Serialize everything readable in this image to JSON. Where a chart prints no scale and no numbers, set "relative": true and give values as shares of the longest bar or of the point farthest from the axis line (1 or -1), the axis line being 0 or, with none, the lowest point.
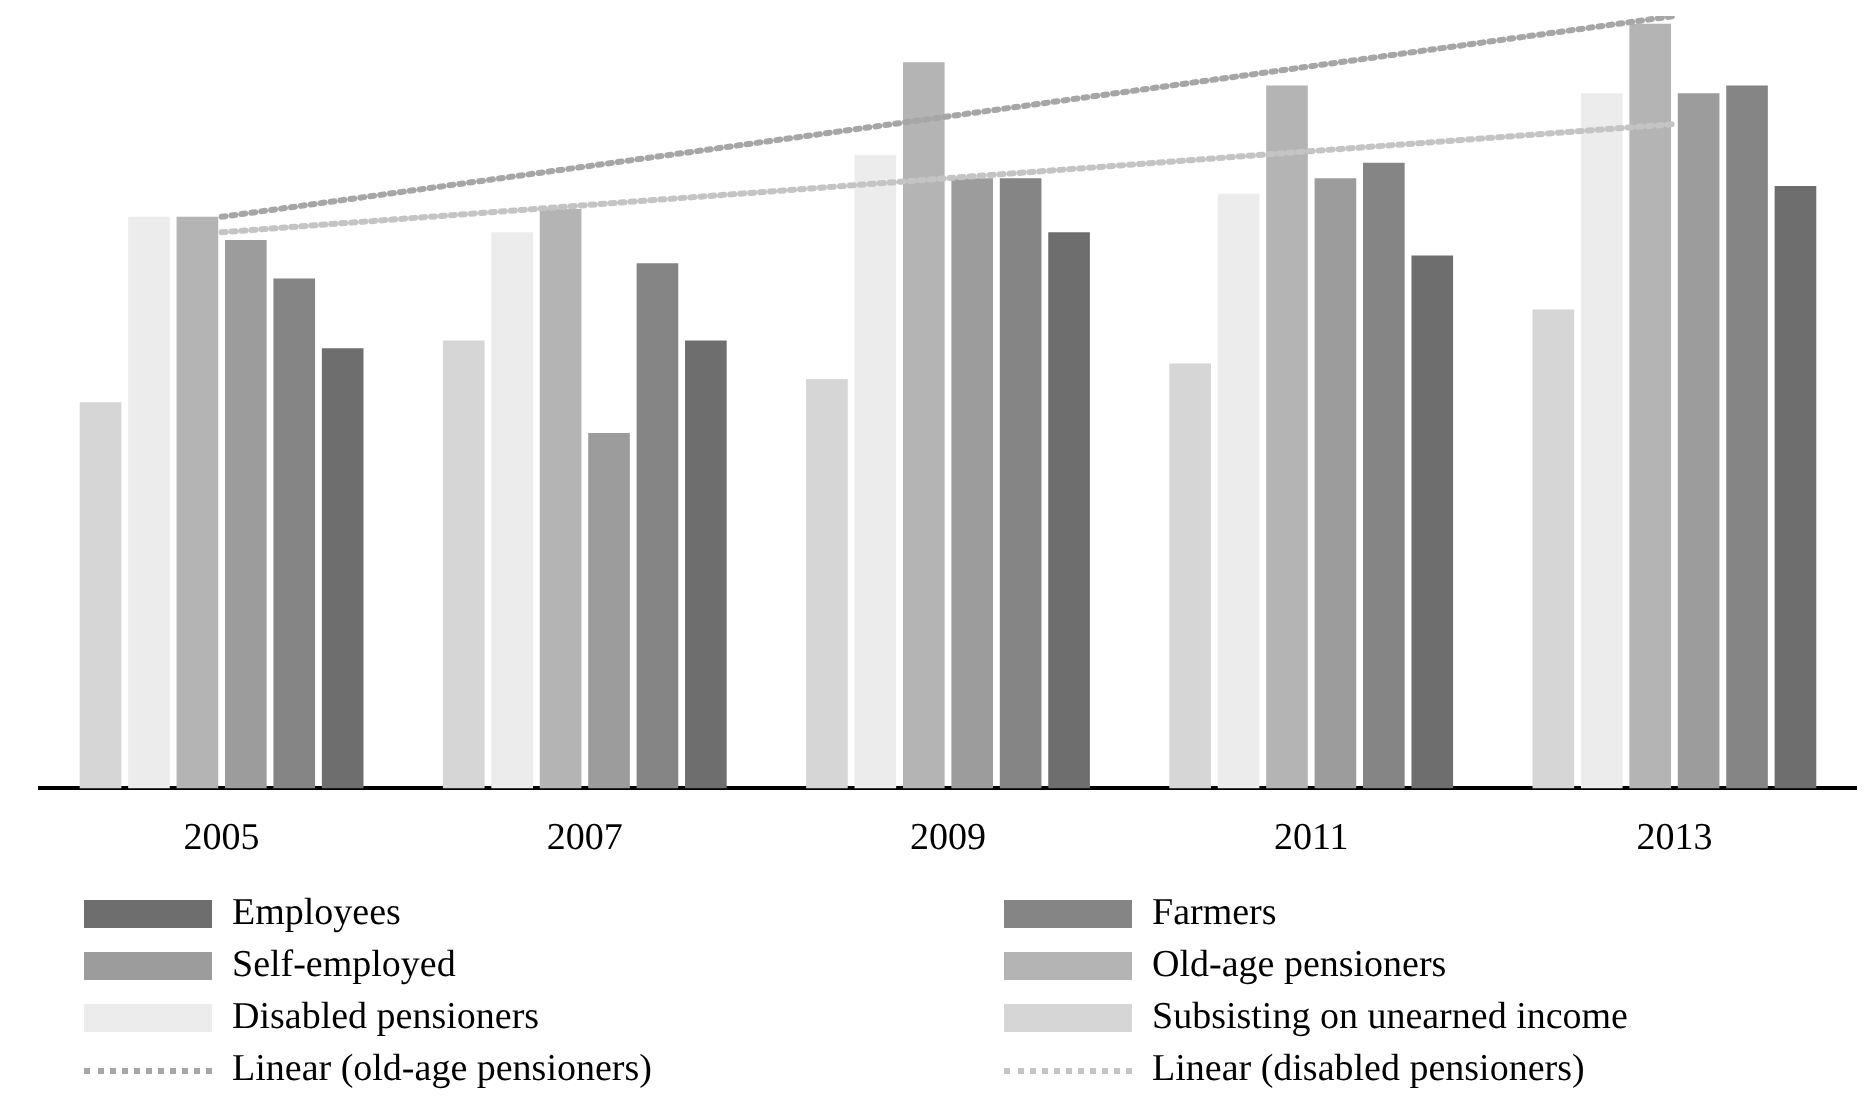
{
  "chart_data": {
    "type": "bar",
    "relative": true,
    "categories": [
      "2005",
      "2007",
      "2009",
      "2011",
      "2013"
    ],
    "legend": "bottom",
    "grid": false,
    "series": [
      {
        "name": "Employees",
        "color": "#6e6e6e",
        "values": [
          0.57,
          0.58,
          0.72,
          0.69,
          0.78
        ]
      },
      {
        "name": "Farmers",
        "color": "#858585",
        "values": [
          0.66,
          0.68,
          0.79,
          0.81,
          0.91
        ]
      },
      {
        "name": "Self-employed",
        "color": "#9c9c9c",
        "values": [
          0.71,
          0.46,
          0.79,
          0.79,
          0.9
        ]
      },
      {
        "name": "Old-age pensioners",
        "color": "#b4b4b4",
        "values": [
          0.74,
          0.75,
          0.94,
          0.91,
          0.99
        ]
      },
      {
        "name": "Disabled pensioners",
        "color": "#ececec",
        "values": [
          0.74,
          0.72,
          0.82,
          0.77,
          0.9
        ]
      },
      {
        "name": "Subsisting on unearned income",
        "color": "#d6d6d6",
        "values": [
          0.5,
          0.58,
          0.53,
          0.55,
          0.62
        ]
      },
      {
        "name": "Linear (old-age pensioners)",
        "type": "line",
        "line_style": "dotted",
        "marker": "none",
        "color": "#a6a6a6",
        "values": [
          0.74,
          0.805,
          0.87,
          0.935,
          1.0
        ]
      },
      {
        "name": "Linear (disabled pensioners)",
        "type": "line",
        "line_style": "dotted",
        "marker": "none",
        "color": "#c4c4c4",
        "values": [
          0.72,
          0.755,
          0.79,
          0.825,
          0.86
        ]
      }
    ]
  }
}
